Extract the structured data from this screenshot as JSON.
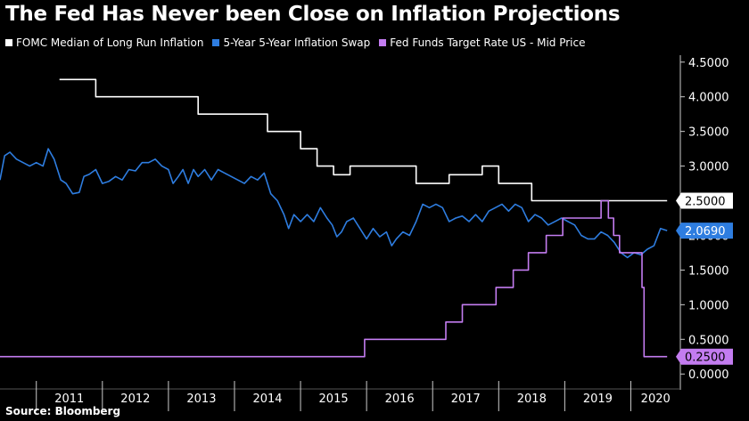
{
  "header": {
    "title": "The Fed Has Never been Close on Inflation Projections"
  },
  "footer": {
    "source": "Source: Bloomberg"
  },
  "chart_data": {
    "type": "line",
    "title": "The Fed Has Never been Close on Inflation Projections",
    "xlabel": "",
    "ylabel": "",
    "xlim": [
      2010.45,
      2020.75
    ],
    "ylim": [
      -0.1,
      4.6
    ],
    "y_ticks": [
      "4.5000",
      "4.0000",
      "3.5000",
      "3.0000",
      "2.5000",
      "2.0000",
      "1.5000",
      "1.0000",
      "0.5000",
      "0.0000"
    ],
    "x_ticks": [
      "2011",
      "2012",
      "2013",
      "2014",
      "2015",
      "2016",
      "2017",
      "2018",
      "2019",
      "2020"
    ],
    "grid": false,
    "legend": "top-left",
    "series": [
      {
        "name": "FOMC Median of Long Run Inflation",
        "color": "#ffffff",
        "step": true,
        "end_label": "2.5000",
        "points": [
          [
            2011.35,
            4.25
          ],
          [
            2011.9,
            4.0
          ],
          [
            2013.0,
            4.0
          ],
          [
            2013.45,
            3.75
          ],
          [
            2014.1,
            3.75
          ],
          [
            2014.25,
            3.75
          ],
          [
            2014.5,
            3.5
          ],
          [
            2014.75,
            3.5
          ],
          [
            2015.0,
            3.25
          ],
          [
            2015.25,
            3.0
          ],
          [
            2015.5,
            2.875
          ],
          [
            2015.75,
            3.0
          ],
          [
            2016.5,
            3.0
          ],
          [
            2016.75,
            2.75
          ],
          [
            2017.0,
            2.75
          ],
          [
            2017.25,
            2.875
          ],
          [
            2017.5,
            2.875
          ],
          [
            2017.75,
            3.0
          ],
          [
            2018.0,
            2.75
          ],
          [
            2018.25,
            2.75
          ],
          [
            2018.5,
            2.5
          ],
          [
            2020.55,
            2.5
          ]
        ]
      },
      {
        "name": "5-Year 5-Year Inflation Swap",
        "color": "#2e7de0",
        "step": false,
        "end_label": "2.0690",
        "points": [
          [
            2010.45,
            2.8
          ],
          [
            2010.52,
            3.15
          ],
          [
            2010.6,
            3.2
          ],
          [
            2010.7,
            3.1
          ],
          [
            2010.8,
            3.05
          ],
          [
            2010.9,
            3.0
          ],
          [
            2011.0,
            3.05
          ],
          [
            2011.1,
            3.0
          ],
          [
            2011.18,
            3.25
          ],
          [
            2011.27,
            3.1
          ],
          [
            2011.37,
            2.8
          ],
          [
            2011.45,
            2.75
          ],
          [
            2011.55,
            2.6
          ],
          [
            2011.65,
            2.62
          ],
          [
            2011.72,
            2.85
          ],
          [
            2011.8,
            2.88
          ],
          [
            2011.9,
            2.95
          ],
          [
            2012.0,
            2.75
          ],
          [
            2012.1,
            2.78
          ],
          [
            2012.2,
            2.85
          ],
          [
            2012.3,
            2.8
          ],
          [
            2012.4,
            2.95
          ],
          [
            2012.5,
            2.93
          ],
          [
            2012.6,
            3.05
          ],
          [
            2012.7,
            3.05
          ],
          [
            2012.8,
            3.1
          ],
          [
            2012.9,
            3.0
          ],
          [
            2013.0,
            2.95
          ],
          [
            2013.07,
            2.75
          ],
          [
            2013.15,
            2.85
          ],
          [
            2013.22,
            2.95
          ],
          [
            2013.3,
            2.75
          ],
          [
            2013.38,
            2.95
          ],
          [
            2013.45,
            2.85
          ],
          [
            2013.55,
            2.95
          ],
          [
            2013.65,
            2.8
          ],
          [
            2013.75,
            2.95
          ],
          [
            2013.85,
            2.9
          ],
          [
            2013.95,
            2.85
          ],
          [
            2014.05,
            2.8
          ],
          [
            2014.15,
            2.75
          ],
          [
            2014.25,
            2.85
          ],
          [
            2014.35,
            2.8
          ],
          [
            2014.45,
            2.9
          ],
          [
            2014.55,
            2.6
          ],
          [
            2014.65,
            2.5
          ],
          [
            2014.75,
            2.3
          ],
          [
            2014.82,
            2.1
          ],
          [
            2014.9,
            2.3
          ],
          [
            2015.0,
            2.2
          ],
          [
            2015.1,
            2.3
          ],
          [
            2015.2,
            2.2
          ],
          [
            2015.3,
            2.4
          ],
          [
            2015.4,
            2.25
          ],
          [
            2015.48,
            2.15
          ],
          [
            2015.55,
            1.98
          ],
          [
            2015.62,
            2.05
          ],
          [
            2015.7,
            2.2
          ],
          [
            2015.8,
            2.25
          ],
          [
            2015.9,
            2.1
          ],
          [
            2016.0,
            1.95
          ],
          [
            2016.1,
            2.1
          ],
          [
            2016.2,
            1.98
          ],
          [
            2016.3,
            2.05
          ],
          [
            2016.38,
            1.85
          ],
          [
            2016.45,
            1.95
          ],
          [
            2016.55,
            2.05
          ],
          [
            2016.65,
            2.0
          ],
          [
            2016.75,
            2.2
          ],
          [
            2016.85,
            2.45
          ],
          [
            2016.95,
            2.4
          ],
          [
            2017.05,
            2.45
          ],
          [
            2017.15,
            2.4
          ],
          [
            2017.25,
            2.2
          ],
          [
            2017.35,
            2.25
          ],
          [
            2017.45,
            2.28
          ],
          [
            2017.55,
            2.2
          ],
          [
            2017.65,
            2.3
          ],
          [
            2017.75,
            2.2
          ],
          [
            2017.85,
            2.35
          ],
          [
            2017.95,
            2.4
          ],
          [
            2018.05,
            2.45
          ],
          [
            2018.15,
            2.35
          ],
          [
            2018.25,
            2.45
          ],
          [
            2018.35,
            2.4
          ],
          [
            2018.45,
            2.2
          ],
          [
            2018.55,
            2.3
          ],
          [
            2018.65,
            2.25
          ],
          [
            2018.75,
            2.15
          ],
          [
            2018.85,
            2.2
          ],
          [
            2018.95,
            2.25
          ],
          [
            2019.05,
            2.2
          ],
          [
            2019.15,
            2.15
          ],
          [
            2019.25,
            2.0
          ],
          [
            2019.35,
            1.95
          ],
          [
            2019.45,
            1.95
          ],
          [
            2019.55,
            2.05
          ],
          [
            2019.65,
            2.0
          ],
          [
            2019.75,
            1.9
          ],
          [
            2019.85,
            1.75
          ],
          [
            2019.95,
            1.68
          ],
          [
            2020.05,
            1.75
          ],
          [
            2020.15,
            1.72
          ],
          [
            2020.25,
            1.8
          ],
          [
            2020.35,
            1.85
          ],
          [
            2020.45,
            2.1
          ],
          [
            2020.55,
            2.069
          ]
        ]
      },
      {
        "name": "Fed Funds Target Rate US - Mid Price",
        "color": "#c37cf0",
        "step": true,
        "end_label": "0.2500",
        "points": [
          [
            2010.45,
            0.25
          ],
          [
            2015.95,
            0.25
          ],
          [
            2015.97,
            0.5
          ],
          [
            2016.97,
            0.5
          ],
          [
            2017.2,
            0.75
          ],
          [
            2017.45,
            1.0
          ],
          [
            2017.96,
            1.25
          ],
          [
            2018.22,
            1.5
          ],
          [
            2018.45,
            1.75
          ],
          [
            2018.72,
            2.0
          ],
          [
            2018.97,
            2.25
          ],
          [
            2019.55,
            2.5
          ],
          [
            2019.66,
            2.25
          ],
          [
            2019.74,
            2.0
          ],
          [
            2019.83,
            1.75
          ],
          [
            2020.17,
            1.25
          ],
          [
            2020.2,
            0.25
          ],
          [
            2020.55,
            0.25
          ]
        ]
      }
    ]
  }
}
